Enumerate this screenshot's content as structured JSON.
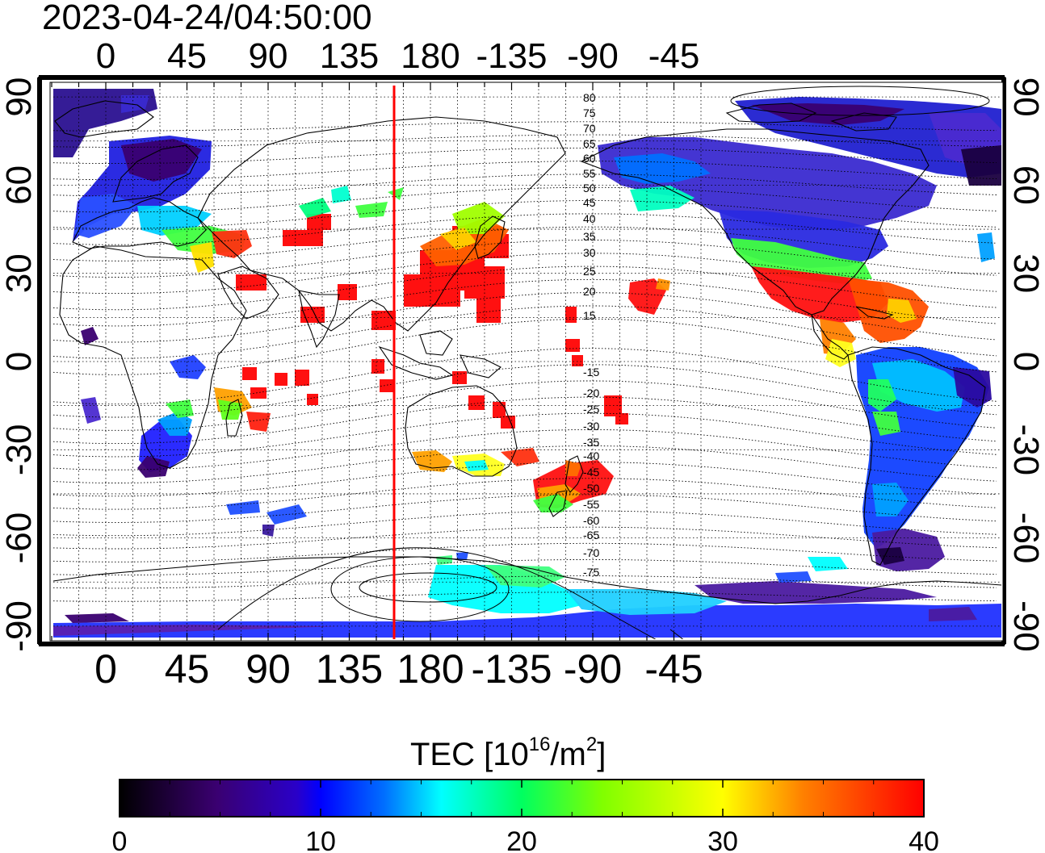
{
  "timestamp": "2023-04-24/04:50:00",
  "map": {
    "lon_ticks": [
      "0",
      "45",
      "90",
      "135",
      "180",
      "-135",
      "-90",
      "-45"
    ],
    "lat_ticks": [
      "90",
      "60",
      "30",
      "0",
      "-30",
      "-60",
      "-90"
    ],
    "magnetic_lat_labels_north": [
      "80",
      "75",
      "70",
      "65",
      "60",
      "55",
      "50",
      "45",
      "40",
      "35",
      "30",
      "25",
      "20",
      "15"
    ],
    "magnetic_lat_labels_south": [
      "-15",
      "-20",
      "-25",
      "-30",
      "-35",
      "-40",
      "-45",
      "-50",
      "-55",
      "-60",
      "-65",
      "-70",
      "-75"
    ],
    "subsolar_meridian_color": "#ff0000"
  },
  "colorbar": {
    "title": "TEC  [10",
    "title_sup": "16",
    "title_mid": "/m",
    "title_sup2": "2",
    "title_end": "]",
    "ticks": [
      "0",
      "10",
      "20",
      "30",
      "40"
    ],
    "range": [
      0,
      40
    ],
    "colors": [
      "#000000",
      "#4b0082",
      "#0000ff",
      "#00ffff",
      "#00ff00",
      "#ffff00",
      "#ff8000",
      "#ff0000"
    ]
  }
}
